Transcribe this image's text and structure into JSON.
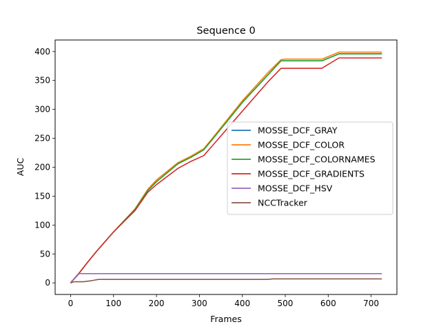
{
  "chart_data": {
    "type": "line",
    "title": "Sequence 0",
    "xlabel": "Frames",
    "ylabel": "AUC",
    "xlim": [
      -36,
      760
    ],
    "ylim": [
      -20,
      420
    ],
    "xticks": [
      0,
      100,
      200,
      300,
      400,
      500,
      600,
      700
    ],
    "yticks": [
      0,
      50,
      100,
      150,
      200,
      250,
      300,
      350,
      400
    ],
    "grid": false,
    "legend_position": "center-right",
    "series": [
      {
        "name": "MOSSE_DCF_GRAY",
        "color": "#1f77b4",
        "points": [
          [
            0,
            0
          ],
          [
            20,
            17
          ],
          [
            40,
            36
          ],
          [
            60,
            54
          ],
          [
            100,
            88
          ],
          [
            150,
            127
          ],
          [
            180,
            160
          ],
          [
            200,
            175
          ],
          [
            250,
            206
          ],
          [
            280,
            217
          ],
          [
            310,
            230
          ],
          [
            330,
            248
          ],
          [
            400,
            312
          ],
          [
            460,
            360
          ],
          [
            490,
            384
          ],
          [
            500,
            384
          ],
          [
            585,
            384
          ],
          [
            625,
            396
          ],
          [
            725,
            396
          ]
        ]
      },
      {
        "name": "MOSSE_DCF_COLOR",
        "color": "#ff7f0e",
        "points": [
          [
            0,
            0
          ],
          [
            20,
            17
          ],
          [
            40,
            36
          ],
          [
            60,
            54
          ],
          [
            100,
            88
          ],
          [
            150,
            128
          ],
          [
            180,
            162
          ],
          [
            200,
            178
          ],
          [
            250,
            208
          ],
          [
            280,
            219
          ],
          [
            310,
            232
          ],
          [
            330,
            250
          ],
          [
            400,
            315
          ],
          [
            460,
            364
          ],
          [
            490,
            386
          ],
          [
            500,
            387
          ],
          [
            585,
            387
          ],
          [
            625,
            399
          ],
          [
            725,
            399
          ]
        ]
      },
      {
        "name": "MOSSE_DCF_COLORNAMES",
        "color": "#2ca02c",
        "points": [
          [
            0,
            0
          ],
          [
            20,
            17
          ],
          [
            40,
            36
          ],
          [
            60,
            54
          ],
          [
            100,
            88
          ],
          [
            150,
            127
          ],
          [
            180,
            160
          ],
          [
            200,
            175
          ],
          [
            250,
            206
          ],
          [
            280,
            217
          ],
          [
            310,
            230
          ],
          [
            330,
            248
          ],
          [
            400,
            312
          ],
          [
            460,
            360
          ],
          [
            490,
            384
          ],
          [
            500,
            384
          ],
          [
            585,
            384
          ],
          [
            625,
            396
          ],
          [
            725,
            396
          ]
        ]
      },
      {
        "name": "MOSSE_DCF_GRADIENTS",
        "color": "#d62728",
        "points": [
          [
            0,
            0
          ],
          [
            20,
            17
          ],
          [
            40,
            36
          ],
          [
            60,
            54
          ],
          [
            100,
            88
          ],
          [
            150,
            125
          ],
          [
            180,
            157
          ],
          [
            200,
            170
          ],
          [
            250,
            198
          ],
          [
            280,
            210
          ],
          [
            310,
            220
          ],
          [
            330,
            237
          ],
          [
            400,
            297
          ],
          [
            460,
            348
          ],
          [
            490,
            371
          ],
          [
            500,
            371
          ],
          [
            585,
            371
          ],
          [
            625,
            389
          ],
          [
            725,
            389
          ]
        ]
      },
      {
        "name": "MOSSE_DCF_HSV",
        "color": "#9467bd",
        "points": [
          [
            0,
            0
          ],
          [
            15,
            12
          ],
          [
            20,
            16
          ],
          [
            725,
            16
          ]
        ]
      },
      {
        "name": "NCCTracker",
        "color": "#8c564b",
        "points": [
          [
            0,
            0
          ],
          [
            8,
            2
          ],
          [
            30,
            2
          ],
          [
            50,
            4
          ],
          [
            65,
            6
          ],
          [
            460,
            6
          ],
          [
            470,
            7
          ],
          [
            725,
            7
          ]
        ]
      }
    ]
  }
}
